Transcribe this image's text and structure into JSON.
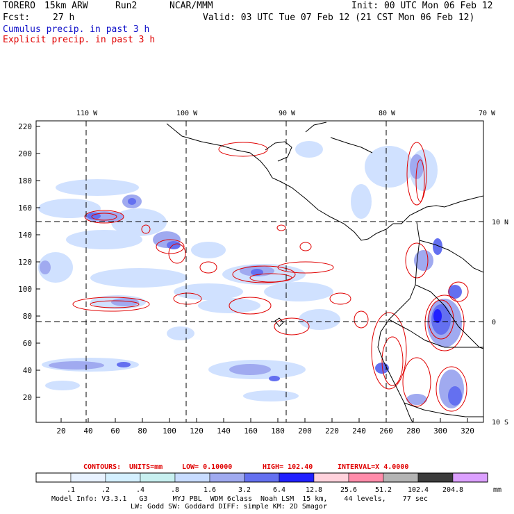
{
  "header": {
    "model": "TORERO",
    "grid": "15km ARW",
    "run": "Run2",
    "org": "NCAR/MMM",
    "init": "Init: 00 UTC Mon 06 Feb 12",
    "fcst_label": "Fcst:",
    "fcst_value": "27 h",
    "valid": "Valid: 03 UTC Tue 07 Feb 12 (21 CST Mon 06 Feb 12)",
    "field1": "Cumulus precip. in past 3 h",
    "field2": "Explicit precip. in past 3 h"
  },
  "map": {
    "lon_labels": [
      "110 W",
      "100 W",
      "90 W",
      "80 W",
      "70 W"
    ],
    "lat_labels": [
      "10 N",
      "0",
      "10 S"
    ],
    "y_ticks": [
      "220",
      "200",
      "180",
      "160",
      "140",
      "120",
      "100",
      "80",
      "60",
      "40",
      "20"
    ],
    "x_ticks": [
      "20",
      "40",
      "60",
      "80",
      "100",
      "120",
      "140",
      "160",
      "180",
      "200",
      "220",
      "240",
      "260",
      "280",
      "300",
      "320"
    ]
  },
  "contours": {
    "prefix": "CONTOURS:",
    "units": "UNITS=mm",
    "low": "LOW= 0.10000",
    "high": "HIGH= 102.40",
    "interval": "INTERVAL=X 4.0000"
  },
  "colorbar": {
    "labels": [
      ".1",
      ".2",
      ".4",
      ".8",
      "1.6",
      "3.2",
      "6.4",
      "12.8",
      "25.6",
      "51.2",
      "102.4",
      "204.8"
    ],
    "unit": "mm",
    "colors": [
      "#ffffff",
      "#e8f2ff",
      "#d4f0ff",
      "#c8f0f0",
      "#c8dcff",
      "#a0aaf0",
      "#6470f0",
      "#2020ff",
      "#ffd2dc",
      "#ff8caa",
      "#b4b4b4",
      "#3c3c3c",
      "#dca0ff"
    ]
  },
  "footer": {
    "line1": "Model Info: V3.3.1   G3      MYJ PBL  WDM 6class  Noah LSM  15 km,    44 levels,    77 sec",
    "line2": "LW: Godd SW: Goddard DIFF: simple KM: 2D Smagor"
  },
  "colors": {
    "cumulus": "#1010c8",
    "explicit": "#e00000",
    "frame": "#000000"
  }
}
